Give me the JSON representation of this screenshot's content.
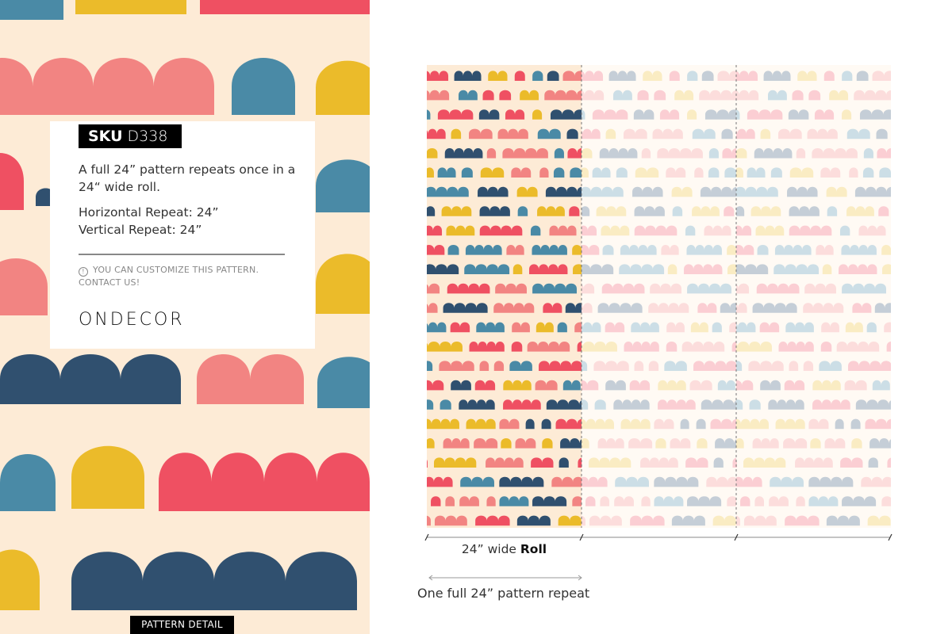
{
  "card": {
    "sku_label": "SKU",
    "sku_code": "D338",
    "description": "A full 24” pattern repeats once in a 24“ wide roll.",
    "horizontal_repeat": "Horizontal Repeat: 24”",
    "vertical_repeat": "Vertical Repeat: 24”",
    "note_icon": "info-circle-icon",
    "note": "YOU CAN CUSTOMIZE THIS PATTERN. CONTACT US!",
    "brand_logo": "ONDECOR"
  },
  "pattern_detail_label": "PATTERN DETAIL",
  "roll": {
    "width_label": "24” wide ",
    "width_label_bold": "Roll",
    "repeat_label": "One full 24” pattern repeat",
    "roll_count": 3,
    "faded_rolls": 2
  },
  "colors": {
    "background": "#fdebd6",
    "pink": "#f28482",
    "red": "#ef5062",
    "blue": "#4a8aa6",
    "yellow": "#ebbb2a",
    "navy": "#30506f"
  }
}
